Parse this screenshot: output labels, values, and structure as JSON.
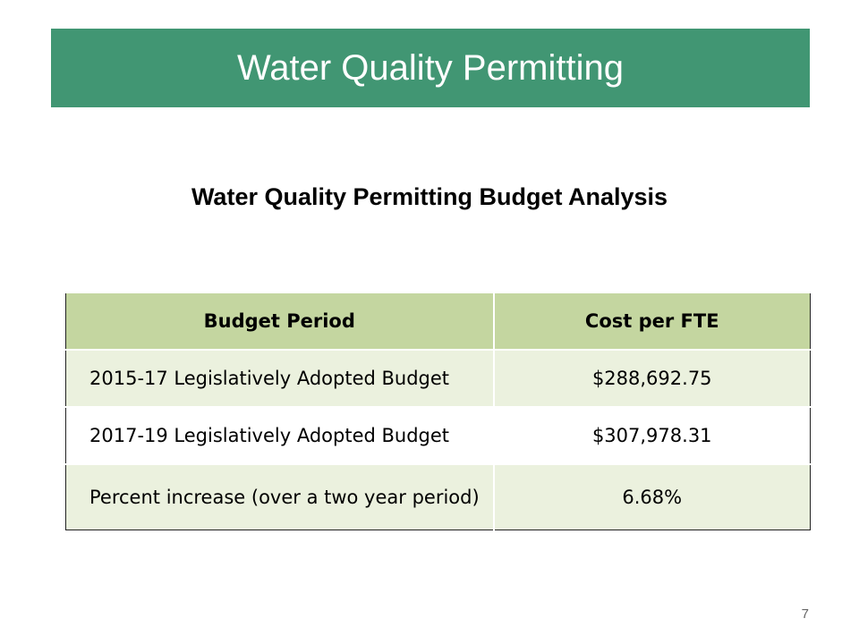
{
  "header": {
    "title": "Water Quality Permitting"
  },
  "subtitle": "Water Quality Permitting Budget Analysis",
  "table": {
    "columns": [
      "Budget Period",
      "Cost per FTE"
    ],
    "rows": [
      [
        "2015-17 Legislatively Adopted Budget",
        "$288,692.75"
      ],
      [
        "2017-19 Legislatively Adopted Budget",
        "$307,978.31"
      ],
      [
        "Percent increase (over a two year period)",
        "6.68%"
      ]
    ]
  },
  "page_number": "7"
}
